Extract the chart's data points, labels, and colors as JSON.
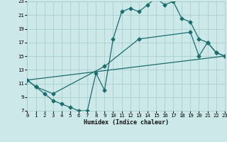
{
  "bg_color": "#cce8e8",
  "grid_color": "#aacece",
  "line_color": "#1a6e6e",
  "line1_x": [
    0,
    1,
    2,
    3,
    4,
    5,
    6,
    7,
    8,
    9,
    10,
    11,
    12,
    13,
    14,
    15,
    16,
    17,
    18,
    19,
    20,
    21,
    22,
    23
  ],
  "line1_y": [
    11.5,
    10.5,
    9.5,
    8.5,
    8.0,
    7.5,
    7.0,
    7.0,
    12.5,
    10.0,
    17.5,
    21.5,
    22.0,
    21.5,
    22.5,
    23.5,
    22.5,
    23.0,
    20.5,
    20.0,
    17.5,
    17.0,
    15.5,
    15.0
  ],
  "line2_x": [
    0,
    1,
    3,
    9,
    13,
    19,
    20,
    21,
    22,
    23
  ],
  "line2_y": [
    11.5,
    10.5,
    9.5,
    13.5,
    17.5,
    18.5,
    15.0,
    17.0,
    15.5,
    15.0
  ],
  "line3_x": [
    0,
    23
  ],
  "line3_y": [
    11.5,
    15.0
  ],
  "xmin": 0,
  "xmax": 23,
  "ymin": 7,
  "ymax": 23,
  "xlabel": "Humidex (Indice chaleur)",
  "xticks": [
    0,
    1,
    2,
    3,
    4,
    5,
    6,
    7,
    8,
    9,
    10,
    11,
    12,
    13,
    14,
    15,
    16,
    17,
    18,
    19,
    20,
    21,
    22,
    23
  ],
  "yticks": [
    7,
    9,
    11,
    13,
    15,
    17,
    19,
    21,
    23
  ],
  "marker_size": 2.5,
  "line_width": 0.9,
  "tick_fontsize": 5.2,
  "xlabel_fontsize": 6.0
}
